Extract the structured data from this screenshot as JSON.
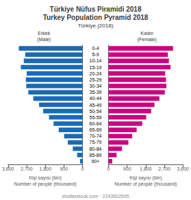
{
  "chart_data": {
    "type": "bar",
    "orientation": "horizontal",
    "title": "Türkiye Nüfus Piramidi 2018\nTurkey Population Pyramid 2018",
    "subtitle": "Türkiye (2018)",
    "xlabel": "Kişi sayısı (bin)\nNumber of people (thousand)",
    "annotations": [
      "shutterstock.com · 2243502595"
    ],
    "categories": [
      "90+",
      "85-89",
      "80-84",
      "75-79",
      "70-74",
      "65-69",
      "60-64",
      "55-59",
      "50-54",
      "45-49",
      "40-44",
      "35-39",
      "30-34",
      "25-29",
      "20-24",
      "15-19",
      "10-14",
      "5-9",
      "0-4"
    ],
    "series": [
      {
        "name": "Erkek\n(Male)",
        "color": "#1A6BB5",
        "values": [
          120,
          260,
          470,
          710,
          890,
          1150,
          1400,
          1620,
          1900,
          2100,
          2380,
          2620,
          2720,
          2740,
          2700,
          2980,
          2840,
          2770,
          3080
        ]
      },
      {
        "name": "Kadın\n(Female)",
        "color": "#CC0080",
        "values": [
          180,
          390,
          650,
          960,
          1140,
          1360,
          1630,
          1820,
          2060,
          2220,
          2460,
          2720,
          2800,
          2780,
          2740,
          3000,
          2920,
          2870,
          3120
        ]
      }
    ],
    "xlim": [
      0,
      3600
    ],
    "xticks": [
      0,
      900,
      1800,
      2700,
      3600
    ],
    "grid": false
  }
}
